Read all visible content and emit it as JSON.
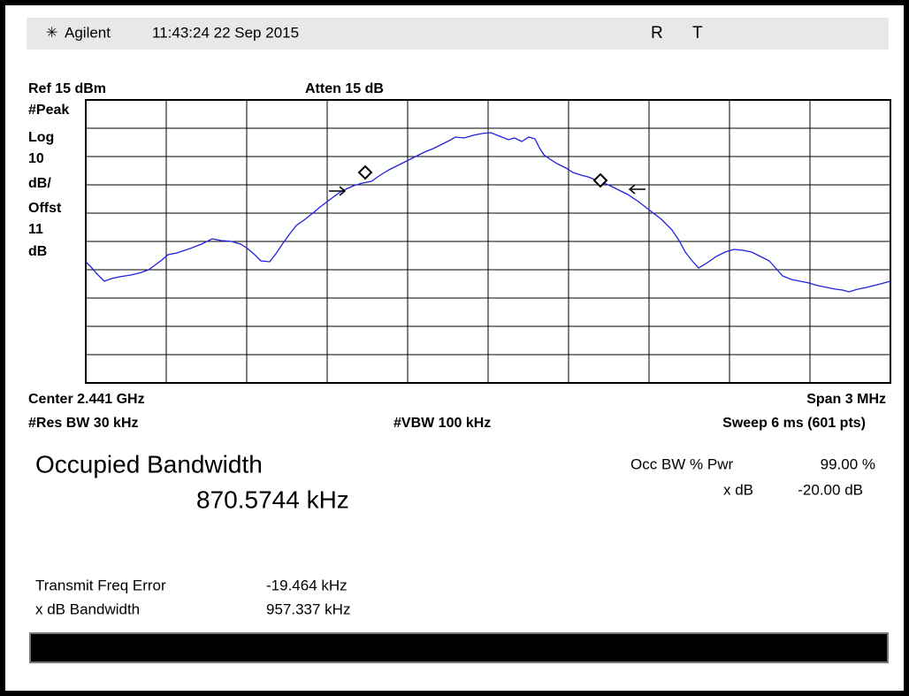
{
  "header": {
    "brand": "Agilent",
    "datetime": "11:43:24  22 Sep 2015",
    "flags": [
      "R",
      "T"
    ]
  },
  "display": {
    "ref": "Ref 15 dBm",
    "atten": "Atten 15 dB",
    "scale_labels": [
      "#Peak",
      "Log",
      "10",
      "dB/",
      "Offst",
      "11",
      "dB"
    ],
    "center": "Center 2.441 GHz",
    "span": "Span 3 MHz",
    "res_bw": "#Res BW 30 kHz",
    "vbw": "#VBW 100 kHz",
    "sweep": "Sweep 6 ms (601 pts)"
  },
  "measurement": {
    "title": "Occupied Bandwidth",
    "value": "870.5744 kHz",
    "params": [
      {
        "label": "Occ BW % Pwr",
        "value": "99.00 %"
      },
      {
        "label": "x dB",
        "value": "-20.00 dB"
      }
    ],
    "results": [
      {
        "label": "Transmit Freq Error",
        "value": "-19.464 kHz"
      },
      {
        "label": "x dB Bandwidth",
        "value": "957.337 kHz"
      }
    ]
  }
}
